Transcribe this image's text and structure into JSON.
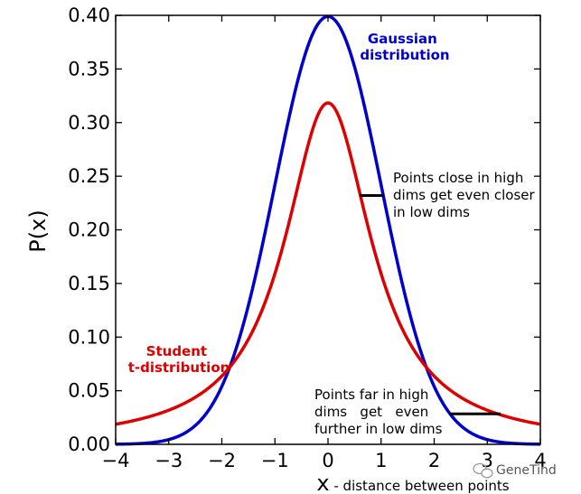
{
  "chart_data": {
    "type": "line",
    "title": "",
    "xlabel": "x",
    "xlabel_suffix": " - distance between points",
    "ylabel": "P(x)",
    "xlim": [
      -4,
      4
    ],
    "ylim": [
      0,
      0.4
    ],
    "x_ticks": [
      "-4",
      "-3",
      "-2",
      "-1",
      "0",
      "1",
      "2",
      "3",
      "4"
    ],
    "y_ticks": [
      "0.00",
      "0.05",
      "0.10",
      "0.15",
      "0.20",
      "0.25",
      "0.30",
      "0.35",
      "0.40"
    ],
    "grid": false,
    "series": [
      {
        "name": "Gaussian distribution",
        "label_lines": [
          "Gaussian",
          "distribution"
        ],
        "color": "#0000cc",
        "formula": "normal",
        "x": [
          -4,
          -3.5,
          -3,
          -2.5,
          -2,
          -1.5,
          -1,
          -0.5,
          0,
          0.5,
          1,
          1.5,
          2,
          2.5,
          3,
          3.5,
          4
        ],
        "values": [
          0.0001,
          0.0009,
          0.0044,
          0.0175,
          0.054,
          0.1295,
          0.242,
          0.352,
          0.399,
          0.352,
          0.242,
          0.1295,
          0.054,
          0.0175,
          0.0044,
          0.0009,
          0.0001
        ]
      },
      {
        "name": "Student t-distribution",
        "label_lines": [
          "Student",
          "t-distribution"
        ],
        "color": "#dd0000",
        "formula": "cauchy",
        "x": [
          -4,
          -3.5,
          -3,
          -2.5,
          -2,
          -1.5,
          -1,
          -0.5,
          0,
          0.5,
          1,
          1.5,
          2,
          2.5,
          3,
          3.5,
          4
        ],
        "values": [
          0.0187,
          0.0241,
          0.0318,
          0.0439,
          0.0637,
          0.0979,
          0.1592,
          0.2546,
          0.3183,
          0.2546,
          0.1592,
          0.0979,
          0.0637,
          0.0439,
          0.0318,
          0.0241,
          0.0187
        ]
      }
    ],
    "annotations": [
      {
        "text_lines": [
          "Points close in high",
          "dims get even closer",
          "in low dims"
        ],
        "segment": {
          "x": [
            0.6,
            1.05
          ],
          "y": [
            0.232,
            0.232
          ]
        }
      },
      {
        "text_lines": [
          "Points far in high",
          "dims   get   even",
          "further in low dims"
        ],
        "segment": {
          "x": [
            2.28,
            3.25
          ],
          "y": [
            0.0284,
            0.0284
          ]
        }
      }
    ]
  },
  "watermark": "GeneTind"
}
